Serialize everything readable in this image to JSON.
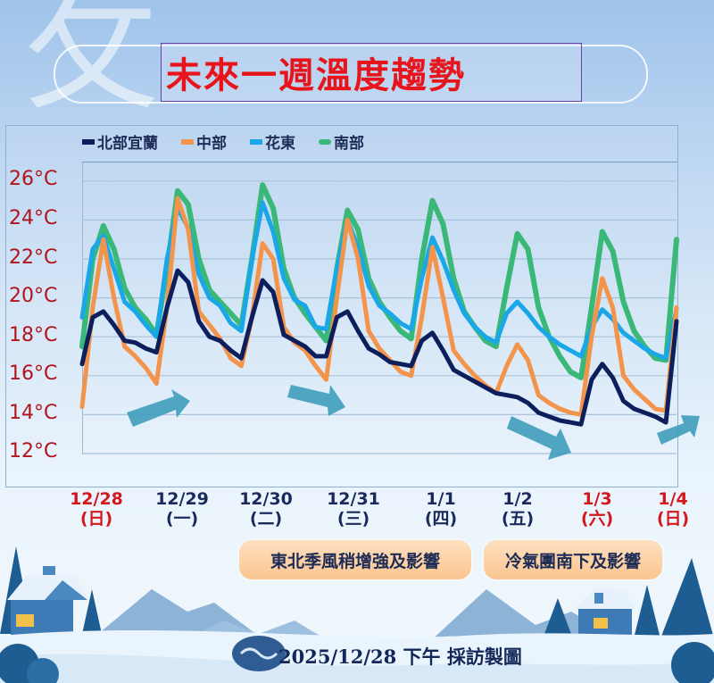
{
  "header": {
    "decor_glyph": "攵",
    "title": "未來一週溫度趨勢"
  },
  "legend": [
    {
      "label": "北部宜蘭",
      "color": "#0c1f5c"
    },
    {
      "label": "中部",
      "color": "#f4934a"
    },
    {
      "label": "花東",
      "color": "#1aa7e8"
    },
    {
      "label": "南部",
      "color": "#3ab878"
    }
  ],
  "y_axis": {
    "ticks": [
      "26°C",
      "24°C",
      "22°C",
      "20°C",
      "18°C",
      "16°C",
      "14°C",
      "12°C"
    ],
    "color": "#b0141c"
  },
  "x_axis": {
    "days": [
      {
        "date": "12/28",
        "weekday": "(日)",
        "color": "#d4161d"
      },
      {
        "date": "12/29",
        "weekday": "(一)",
        "color": "#1b2a5c"
      },
      {
        "date": "12/30",
        "weekday": "(二)",
        "color": "#1b2a5c"
      },
      {
        "date": "12/31",
        "weekday": "(三)",
        "color": "#1b2a5c"
      },
      {
        "date": "1/1",
        "weekday": "(四)",
        "color": "#1b2a5c"
      },
      {
        "date": "1/2",
        "weekday": "(五)",
        "color": "#1b2a5c"
      },
      {
        "date": "1/3",
        "weekday": "(六)",
        "color": "#d4161d"
      },
      {
        "date": "1/4",
        "weekday": "(日)",
        "color": "#d4161d"
      }
    ]
  },
  "notes": [
    {
      "label": "東北季風稍增強及影響"
    },
    {
      "label": "冷氣團南下及影響"
    }
  ],
  "footer": {
    "date": "2025/12/28",
    "text": "下午 採訪製圖"
  },
  "chart_data": {
    "type": "line",
    "title": "未來一週溫度趨勢",
    "xlabel": "",
    "ylabel": "",
    "ylim": [
      12,
      27
    ],
    "yticks": [
      12,
      14,
      16,
      18,
      20,
      22,
      24,
      26
    ],
    "grid": true,
    "legend_position": "top",
    "categories": [
      "12/28(日)",
      "12/29(一)",
      "12/30(二)",
      "12/31(三)",
      "1/1(四)",
      "1/2(五)",
      "1/3(六)",
      "1/4(日)"
    ],
    "x_step_hours": 3,
    "series": [
      {
        "name": "北部宜蘭",
        "color": "#0c1f5c",
        "values": [
          16.6,
          19.0,
          19.3,
          18.6,
          17.8,
          17.7,
          17.4,
          17.2,
          19.5,
          21.4,
          20.8,
          18.8,
          18.0,
          17.8,
          17.3,
          16.9,
          19.0,
          20.9,
          20.3,
          18.1,
          17.8,
          17.5,
          17.0,
          17.0,
          19.0,
          19.3,
          18.3,
          17.4,
          17.1,
          16.7,
          16.6,
          16.5,
          17.8,
          18.2,
          17.3,
          16.3,
          16.0,
          15.7,
          15.4,
          15.1,
          15.0,
          14.9,
          14.6,
          14.1,
          13.9,
          13.7,
          13.6,
          13.5,
          15.8,
          16.6,
          15.9,
          14.7,
          14.3,
          14.1,
          13.9,
          13.6,
          18.8
        ]
      },
      {
        "name": "中部",
        "color": "#f4934a",
        "values": [
          14.4,
          19.5,
          23.0,
          20.0,
          17.5,
          17.0,
          16.4,
          15.6,
          19.5,
          25.1,
          23.5,
          19.3,
          18.6,
          17.9,
          16.9,
          16.5,
          19.0,
          22.8,
          22.0,
          18.5,
          17.7,
          17.3,
          16.5,
          15.8,
          20.0,
          24.0,
          22.0,
          18.3,
          17.4,
          16.8,
          16.2,
          16.0,
          19.0,
          22.6,
          20.0,
          17.3,
          16.6,
          16.0,
          15.5,
          15.1,
          16.5,
          17.6,
          16.8,
          15.0,
          14.6,
          14.3,
          14.1,
          14.0,
          18.0,
          21.0,
          19.5,
          16.0,
          15.3,
          14.8,
          14.3,
          14.2,
          19.5
        ]
      },
      {
        "name": "花東",
        "color": "#1aa7e8",
        "values": [
          19.0,
          22.5,
          23.2,
          21.5,
          19.8,
          19.3,
          18.6,
          18.0,
          22.0,
          24.6,
          23.6,
          21.2,
          20.0,
          19.6,
          18.7,
          18.3,
          22.0,
          24.9,
          23.4,
          21.0,
          19.9,
          19.6,
          18.5,
          18.4,
          21.5,
          24.0,
          22.6,
          20.6,
          19.6,
          19.2,
          18.7,
          18.4,
          21.0,
          23.1,
          21.9,
          20.4,
          19.2,
          18.5,
          18.0,
          17.7,
          19.2,
          19.8,
          19.2,
          18.5,
          18.0,
          17.6,
          17.3,
          17.0,
          18.5,
          19.4,
          18.9,
          18.2,
          17.8,
          17.4,
          17.1,
          16.9,
          19.4
        ]
      },
      {
        "name": "南部",
        "color": "#3ab878",
        "values": [
          17.5,
          22.0,
          23.7,
          22.5,
          20.5,
          19.5,
          18.9,
          18.1,
          21.5,
          25.5,
          24.8,
          22.0,
          20.4,
          19.8,
          19.2,
          18.6,
          22.0,
          25.8,
          24.6,
          21.5,
          20.0,
          19.2,
          18.5,
          17.8,
          21.5,
          24.5,
          23.5,
          21.0,
          19.8,
          19.0,
          18.3,
          17.9,
          22.0,
          25.0,
          23.8,
          21.0,
          19.3,
          18.5,
          17.8,
          17.5,
          20.5,
          23.3,
          22.5,
          19.5,
          18.0,
          17.0,
          16.2,
          15.9,
          19.5,
          23.4,
          22.4,
          19.8,
          18.3,
          17.5,
          16.9,
          16.8,
          23.0
        ]
      }
    ]
  }
}
